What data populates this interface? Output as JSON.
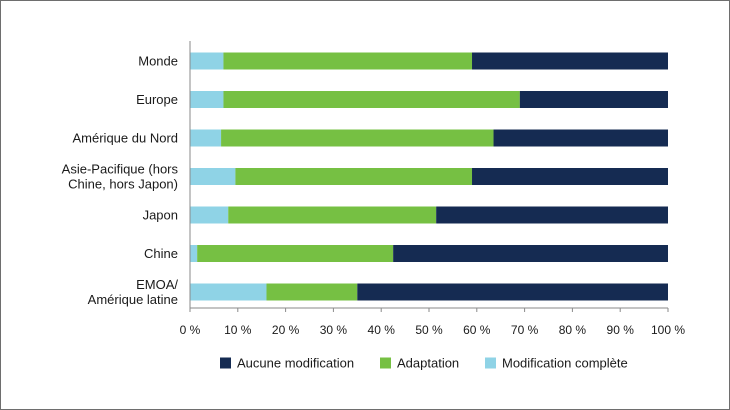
{
  "chart_data": {
    "type": "bar",
    "orientation": "horizontal",
    "stacked": true,
    "categories": [
      [
        "Monde"
      ],
      [
        "Europe"
      ],
      [
        "Amérique du Nord"
      ],
      [
        "Asie-Pacifique (hors",
        "Chine, hors Japon)"
      ],
      [
        "Japon"
      ],
      [
        "Chine"
      ],
      [
        "EMOA/",
        "Amérique latine"
      ]
    ],
    "series": [
      {
        "name": "Modification complète",
        "color": "#8fd3e6",
        "values": [
          7,
          7,
          6.5,
          9.5,
          8,
          1.5,
          16
        ]
      },
      {
        "name": "Adaptation",
        "color": "#76c043",
        "values": [
          52,
          62,
          57,
          49.5,
          43.5,
          41,
          19
        ]
      },
      {
        "name": "Aucune modification",
        "color": "#152b52",
        "values": [
          41,
          31,
          36.5,
          41,
          48.5,
          57.5,
          65
        ]
      }
    ],
    "xlim": [
      0,
      100
    ],
    "xticks": [
      "0 %",
      "10 %",
      "20 %",
      "30 %",
      "40 %",
      "50 %",
      "60 %",
      "70 %",
      "80 %",
      "90 %",
      "100 %"
    ],
    "xtick_values": [
      0,
      10,
      20,
      30,
      40,
      50,
      60,
      70,
      80,
      90,
      100
    ],
    "grid": false,
    "legend": {
      "position": "bottom",
      "items": [
        "Aucune modification",
        "Adaptation",
        "Modification complète"
      ]
    }
  }
}
